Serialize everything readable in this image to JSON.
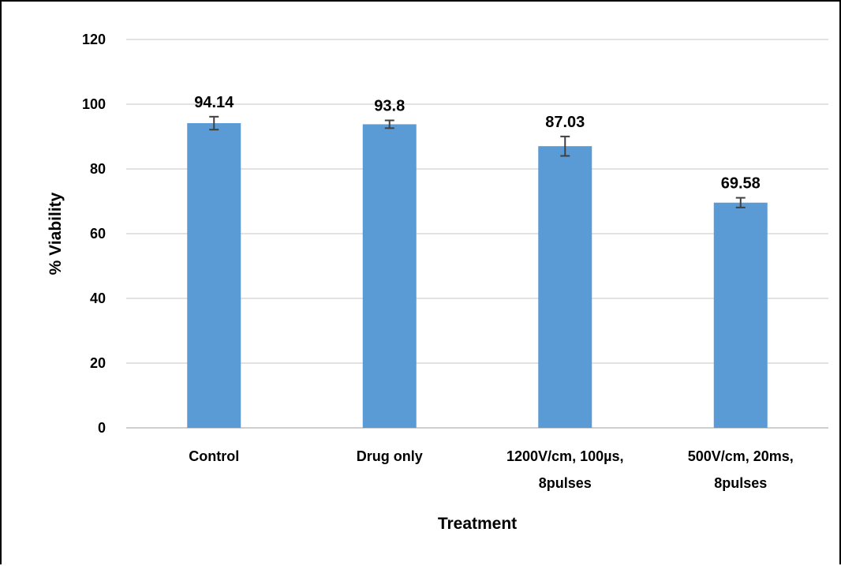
{
  "chart_data": {
    "type": "bar",
    "title": "",
    "xlabel": "Treatment",
    "ylabel": "% Viability",
    "ylim": [
      0,
      120
    ],
    "yticks": [
      0,
      20,
      40,
      60,
      80,
      100,
      120
    ],
    "grid": true,
    "legend": "none",
    "bar_color": "#5b9bd5",
    "categories": [
      [
        "Control"
      ],
      [
        "Drug only"
      ],
      [
        "1200V/cm, 100µs,",
        "8pulses"
      ],
      [
        "500V/cm, 20ms,",
        "8pulses"
      ]
    ],
    "values": [
      94.14,
      93.8,
      87.03,
      69.58
    ],
    "data_labels": [
      "94.14",
      "93.8",
      "87.03",
      "69.58"
    ],
    "errors": [
      2.0,
      1.2,
      3.0,
      1.5
    ]
  }
}
